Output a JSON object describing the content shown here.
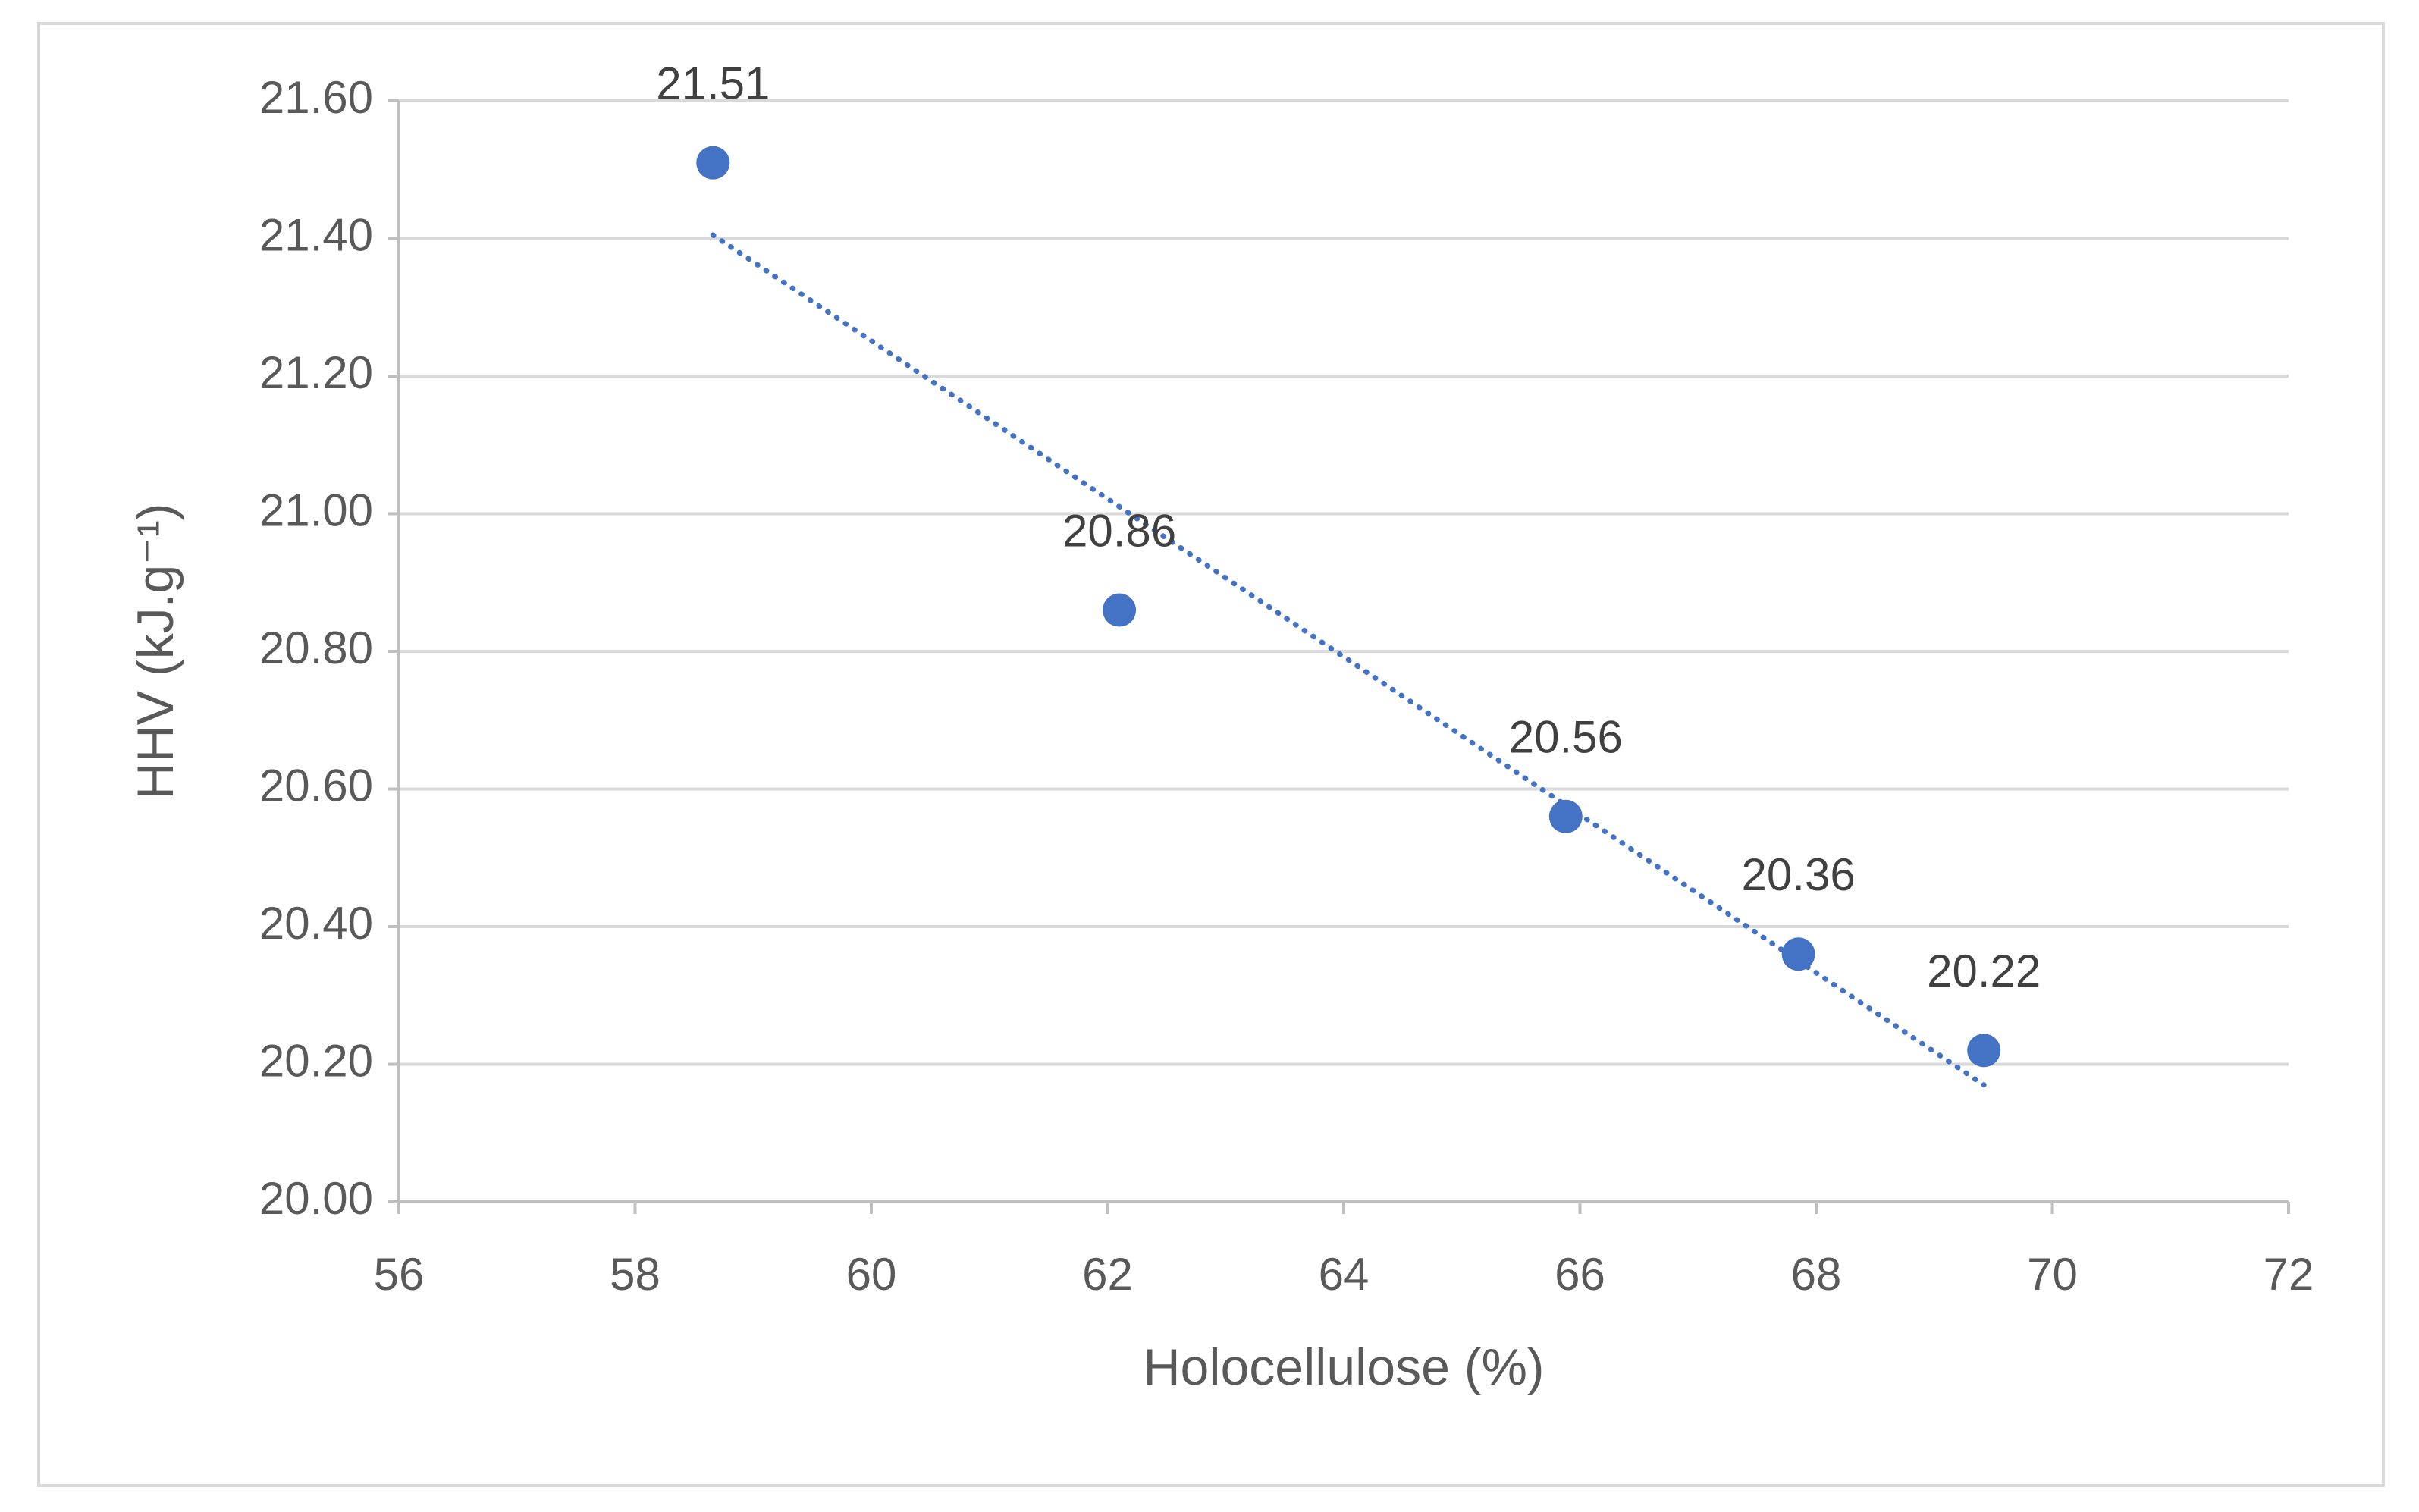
{
  "chart_data": {
    "type": "scatter",
    "x_label": "Holocellulose (%)",
    "y_label": "HHV (kJ.g⁻¹)",
    "series": [
      {
        "color": "#4472c4",
        "x": [
          58.66,
          62.1,
          65.88,
          67.85,
          69.42
        ],
        "values": [
          21.51,
          20.86,
          20.56,
          20.36,
          20.22
        ]
      }
    ],
    "trendline": {
      "color": "#4472c4",
      "style": "dotted",
      "x": [
        58.66,
        69.42
      ],
      "values": [
        21.405,
        20.17
      ]
    },
    "xlim": [
      56,
      72
    ],
    "xticks": [
      56,
      58,
      60,
      62,
      64,
      66,
      68,
      70,
      72
    ],
    "ylim": [
      20.0,
      21.6
    ],
    "yticks": [
      {
        "value": 20.0,
        "label": "20.00"
      },
      {
        "value": 20.2,
        "label": "20.20"
      },
      {
        "value": 20.4,
        "label": "20.40"
      },
      {
        "value": 20.6,
        "label": "20.60"
      },
      {
        "value": 20.8,
        "label": "20.80"
      },
      {
        "value": 21.0,
        "label": "21.00"
      },
      {
        "value": 21.2,
        "label": "21.20"
      },
      {
        "value": 21.4,
        "label": "21.40"
      },
      {
        "value": 21.6,
        "label": "21.60"
      }
    ],
    "grid": true
  }
}
